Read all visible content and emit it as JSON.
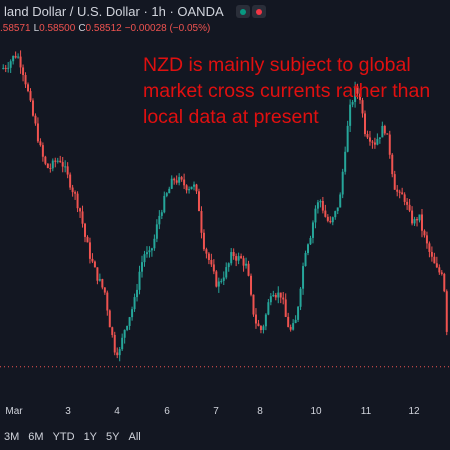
{
  "header": {
    "title": "land Dollar / U.S. Dollar · 1h · OANDA",
    "ohlc": {
      "o_value": ".58571",
      "l_label": "L",
      "l_value": "0.58500",
      "c_label": "C",
      "c_value": "0.58512",
      "change": "−0.00028 (−0.05%)"
    }
  },
  "annotation": "NZD is mainly subject to global market cross currents rather than local data at present",
  "timeframes": [
    "3M",
    "6M",
    "YTD",
    "1Y",
    "5Y",
    "All"
  ],
  "colors": {
    "background": "#131722",
    "up": "#26a69a",
    "down": "#ef5350",
    "annotation": "#e01010",
    "price_line": "#ef5350"
  },
  "chart_data": {
    "type": "candlestick",
    "x_tick_labels": [
      "Mar",
      "3",
      "4",
      "6",
      "7",
      "8",
      "10",
      "11",
      "12"
    ],
    "trend_path": [
      [
        0,
        0.67
      ],
      [
        1,
        0.672
      ],
      [
        2,
        0.676
      ],
      [
        3,
        0.679
      ],
      [
        4,
        0.672
      ],
      [
        5,
        0.66
      ],
      [
        6,
        0.645
      ],
      [
        7,
        0.633
      ],
      [
        8,
        0.619
      ],
      [
        9,
        0.61
      ],
      [
        10,
        0.61
      ],
      [
        11,
        0.614
      ],
      [
        12,
        0.615
      ],
      [
        13,
        0.607
      ],
      [
        14,
        0.6
      ],
      [
        15,
        0.592
      ],
      [
        16,
        0.583
      ],
      [
        17,
        0.567
      ],
      [
        18,
        0.556
      ],
      [
        19,
        0.547
      ],
      [
        20,
        0.54
      ],
      [
        21,
        0.534
      ],
      [
        22,
        0.515
      ],
      [
        23,
        0.5
      ],
      [
        24,
        0.498
      ],
      [
        25,
        0.512
      ],
      [
        26,
        0.52
      ],
      [
        27,
        0.528
      ],
      [
        28,
        0.546
      ],
      [
        29,
        0.558
      ],
      [
        30,
        0.556
      ],
      [
        31,
        0.565
      ],
      [
        32,
        0.58
      ],
      [
        33,
        0.589
      ],
      [
        34,
        0.596
      ],
      [
        35,
        0.603
      ],
      [
        36,
        0.602
      ],
      [
        37,
        0.6
      ],
      [
        38,
        0.598
      ],
      [
        39,
        0.6
      ],
      [
        40,
        0.59
      ],
      [
        41,
        0.565
      ],
      [
        42,
        0.556
      ],
      [
        43,
        0.546
      ],
      [
        44,
        0.538
      ],
      [
        45,
        0.544
      ],
      [
        46,
        0.549
      ],
      [
        47,
        0.558
      ],
      [
        48,
        0.555
      ],
      [
        49,
        0.554
      ],
      [
        50,
        0.549
      ],
      [
        51,
        0.526
      ],
      [
        52,
        0.514
      ],
      [
        53,
        0.511
      ],
      [
        54,
        0.522
      ],
      [
        55,
        0.537
      ],
      [
        56,
        0.533
      ],
      [
        57,
        0.533
      ],
      [
        58,
        0.517
      ],
      [
        59,
        0.51
      ],
      [
        60,
        0.517
      ],
      [
        61,
        0.541
      ],
      [
        62,
        0.562
      ],
      [
        63,
        0.57
      ],
      [
        64,
        0.586
      ],
      [
        65,
        0.59
      ],
      [
        66,
        0.58
      ],
      [
        67,
        0.575
      ],
      [
        68,
        0.582
      ],
      [
        69,
        0.592
      ],
      [
        70,
        0.622
      ],
      [
        71,
        0.645
      ],
      [
        72,
        0.657
      ],
      [
        73,
        0.654
      ],
      [
        74,
        0.633
      ],
      [
        75,
        0.629
      ],
      [
        76,
        0.625
      ],
      [
        77,
        0.63
      ],
      [
        78,
        0.635
      ],
      [
        79,
        0.622
      ],
      [
        80,
        0.6
      ],
      [
        81,
        0.592
      ],
      [
        82,
        0.593
      ],
      [
        83,
        0.582
      ],
      [
        84,
        0.576
      ],
      [
        85,
        0.581
      ],
      [
        86,
        0.569
      ],
      [
        87,
        0.56
      ],
      [
        88,
        0.552
      ],
      [
        89,
        0.546
      ],
      [
        90,
        0.548
      ],
      [
        91,
        0.5
      ]
    ],
    "last_price": 0.58512,
    "price_line": 0.489,
    "y_range": [
      0.47,
      0.685
    ],
    "x_range": [
      0,
      91
    ],
    "grid": false,
    "legend": "none"
  }
}
